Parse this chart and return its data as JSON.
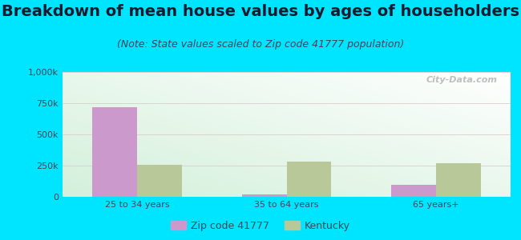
{
  "title": "Breakdown of mean house values by ages of householders",
  "subtitle": "(Note: State values scaled to Zip code 41777 population)",
  "categories": [
    "25 to 34 years",
    "35 to 64 years",
    "65 years+"
  ],
  "zip_values": [
    720000,
    18000,
    95000
  ],
  "state_values": [
    255000,
    285000,
    270000
  ],
  "zip_color": "#cc99cc",
  "state_color": "#b8c899",
  "background_outer": "#00e5ff",
  "ylim": [
    0,
    1000000
  ],
  "yticks": [
    0,
    250000,
    500000,
    750000,
    1000000
  ],
  "ytick_labels": [
    "0",
    "250k",
    "500k",
    "750k",
    "1,000k"
  ],
  "bar_width": 0.3,
  "title_fontsize": 14,
  "subtitle_fontsize": 9,
  "tick_fontsize": 8,
  "legend_label_zip": "Zip code 41777",
  "legend_label_state": "Kentucky",
  "watermark": "City-Data.com",
  "grid_color": "#ddcccc",
  "title_color": "#1a1a2e",
  "subtitle_color": "#444455",
  "tick_color": "#444455"
}
